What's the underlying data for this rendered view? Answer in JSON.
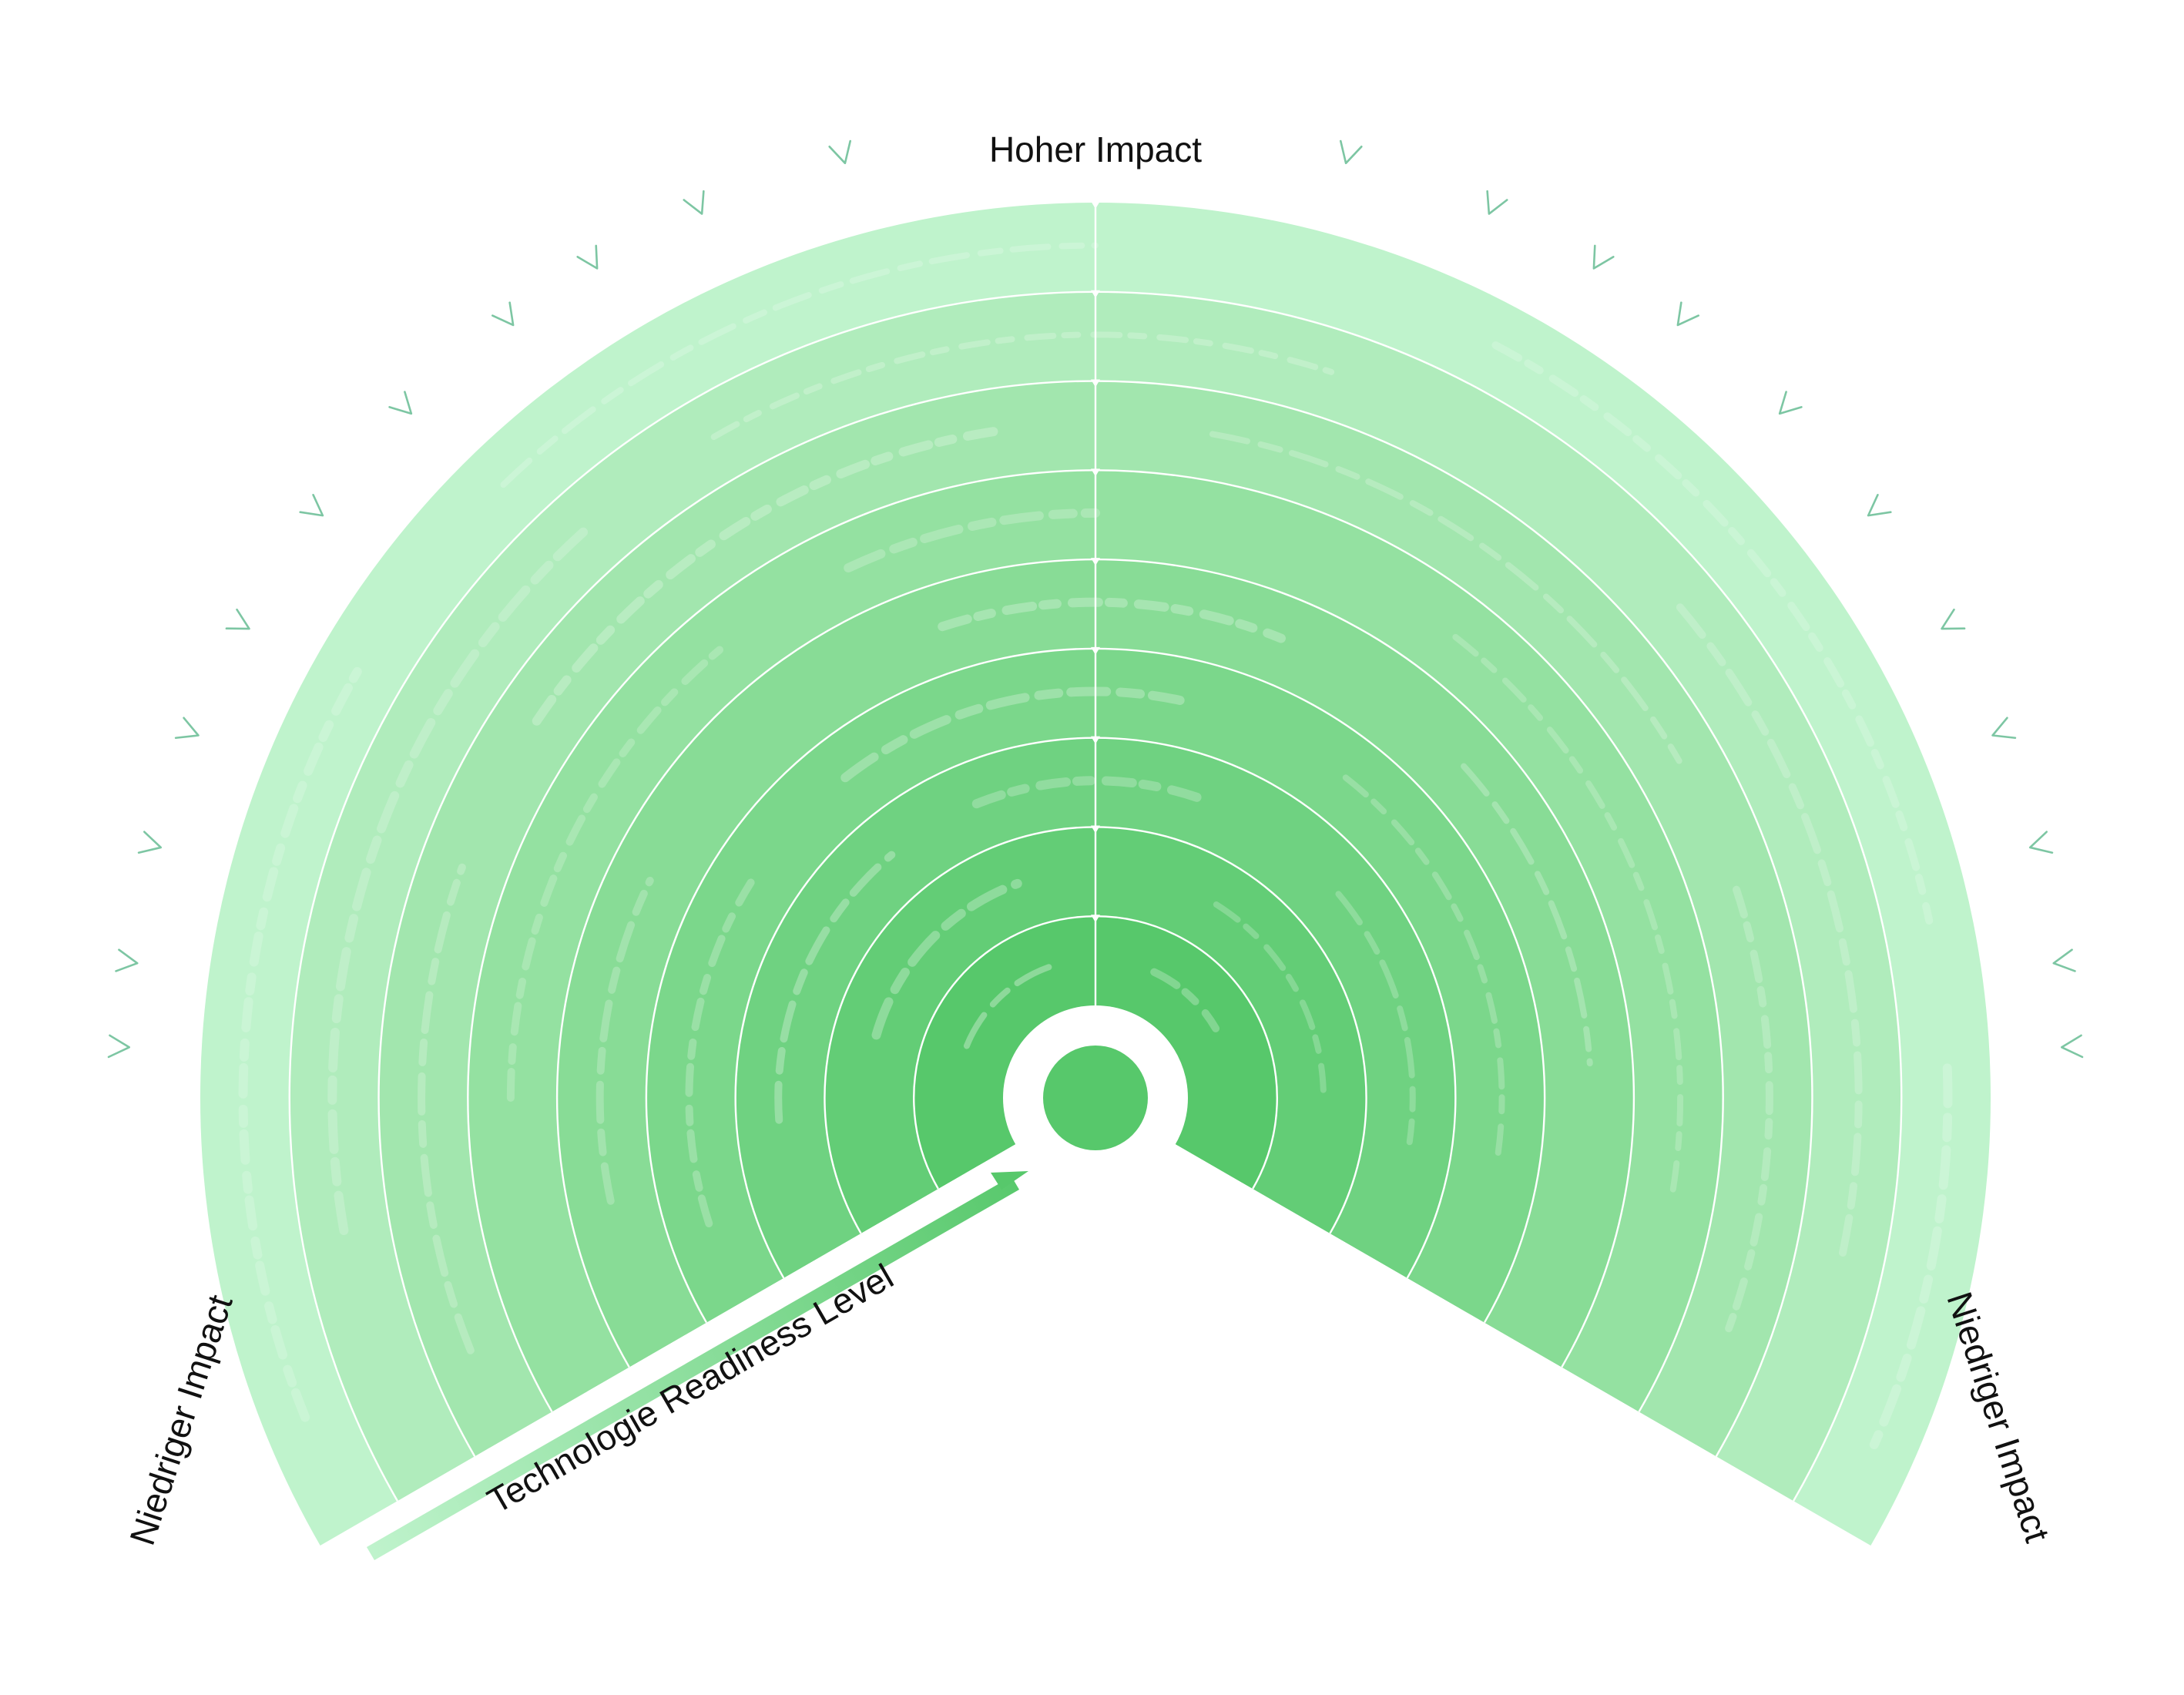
{
  "labels": {
    "top": "Hoher Impact",
    "left": "Niedriger Impact",
    "right": "Niedriger Impact",
    "axis": "Technologie Readiness Level"
  },
  "rings": {
    "count": 9,
    "colors": [
      "#57c86b",
      "#63cd76",
      "#6fd281",
      "#7bd78b",
      "#88dc96",
      "#94e1a1",
      "#a2e6ae",
      "#b0ecbc",
      "#bff3cc"
    ]
  },
  "colors": {
    "center": "#57c86b",
    "axis_start": "#bff3cc",
    "axis_end": "#57c86b",
    "chevron": "#7dc6a3",
    "divider": "#ffffff",
    "label": "#111111"
  },
  "icons": {
    "chevron": "chevron-icon",
    "axis_arrow": "arrow-right-icon",
    "ring_arrow": "arrow-down-icon"
  }
}
